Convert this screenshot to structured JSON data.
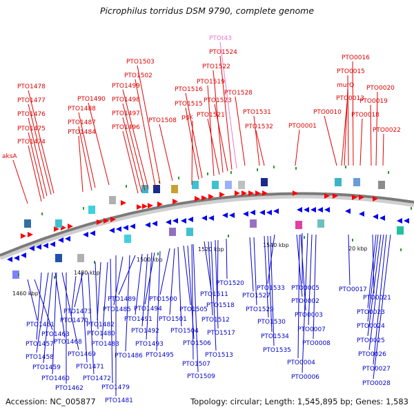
{
  "title": "Picrophilus torridus DSM 9790, complete genome",
  "footer": {
    "accession": "Accession: NC_005877",
    "topology": "Topology: circular; Length: 1,545,895 bp; Genes: 1,583"
  },
  "colors": {
    "top_label": "#e00000",
    "rna_label": "#e87ad0",
    "bottom_label": "#0000cc",
    "forward": "#ff0000",
    "reverse": "#0000ee"
  },
  "scale_labels": [
    "1460 kbp",
    "1480 kbp",
    "1500 kbp",
    "1520 kbp",
    "1540 kbp",
    "20 kbp"
  ],
  "top_labels": [
    "aksA",
    "PTO1474",
    "PTO1475",
    "PTO1476",
    "PTO1477",
    "PTO1478",
    "PTO1484",
    "PTO1487",
    "PTO1488",
    "PTO1490",
    "PTO1496",
    "PTO1497",
    "PTO1498",
    "PTO1499",
    "PTO1502",
    "PTO1503",
    "PTO1508",
    "pgk",
    "PTO1515",
    "PTO1516",
    "PTO1519",
    "PTO1521",
    "PTO1522",
    "PTO1523",
    "PTO1524",
    "PTOt43",
    "PTO1528",
    "PTO1531",
    "PTO1532",
    "PTO0001",
    "PTO0010",
    "PTO0013",
    "murQ",
    "PTO0015",
    "PTO0016",
    "PTO0018",
    "PTO0019",
    "PTO0020",
    "PTO0022"
  ],
  "bottom_labels": [
    "PTO1457",
    "PTO1458",
    "PTO1459",
    "PTO1460",
    "PTO1461",
    "PTO1462",
    "PTO1463",
    "PTO1468",
    "PTO1469",
    "PTO1470",
    "PTO1471",
    "PTO1472",
    "PTO1473",
    "PTO1479",
    "PTO1480",
    "PTO1481",
    "PTO1482",
    "PTO1483",
    "PTO1485",
    "PTO1486",
    "PTO1489",
    "PTO1491",
    "PTO1492",
    "PTO1493",
    "PTO1494",
    "PTO1495",
    "PTO1500",
    "PTO1501",
    "PTO1504",
    "PTO1505",
    "PTO1506",
    "PTO1507",
    "PTO1509",
    "PTO1511",
    "PTO1512",
    "PTO1513",
    "PTO1517",
    "PTO1518",
    "PTO1520",
    "PTO1527",
    "PTO1529",
    "PTO1530",
    "PTO1533",
    "PTO1534",
    "PTO1535",
    "PTO0002",
    "PTO0003",
    "PTO0004",
    "PTO0005",
    "PTO0006",
    "PTO0007",
    "PTO0008",
    "PTO0017",
    "PTO0021",
    "PTO0023",
    "PTO0024",
    "PTO0025",
    "PTO0026",
    "PTO0027",
    "PTO0028"
  ]
}
